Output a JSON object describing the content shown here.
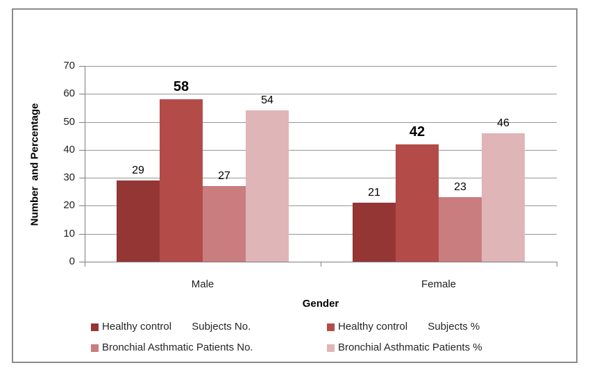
{
  "chart_data": {
    "type": "bar",
    "title": "",
    "categories": [
      "Male",
      "Female"
    ],
    "series": [
      {
        "name": "Healthy control       Subjects No.",
        "values": [
          29,
          21
        ],
        "color": "#943634",
        "data_label_bold": false
      },
      {
        "name": "Healthy control       Subjects %",
        "values": [
          58,
          42
        ],
        "color": "#B34B48",
        "data_label_bold": true
      },
      {
        "name": "Bronchial Asthmatic Patients No.",
        "values": [
          27,
          23
        ],
        "color": "#C97D7F",
        "data_label_bold": false
      },
      {
        "name": "Bronchial Asthmatic Patients %",
        "values": [
          54,
          46
        ],
        "color": "#DFB5B7",
        "data_label_bold": false
      }
    ],
    "xlabel": "Gender",
    "ylabel": "Number  and Percentage",
    "ylim": [
      0,
      70
    ],
    "yticks": [
      0,
      10,
      20,
      30,
      40,
      50,
      60,
      70
    ],
    "grid": true,
    "legend_position": "bottom",
    "legend_layout": {
      "rows": 2,
      "columns": 2
    }
  },
  "style": {
    "grid_color": "#959595",
    "axis_color": "#7d7d7d",
    "border_color": "#8a8a8a",
    "text_color": "#1f1f1f"
  }
}
